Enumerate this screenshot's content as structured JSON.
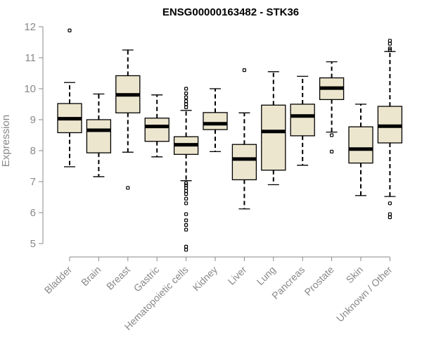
{
  "chart_data": {
    "type": "boxplot",
    "title": "ENSG00000163482 - STK36",
    "xlabel": "",
    "ylabel": "Expression",
    "ylim": [
      4.7,
      12
    ],
    "yticks": [
      5,
      6,
      7,
      8,
      9,
      10,
      11,
      12
    ],
    "grid": false,
    "box_color": "#ede6cf",
    "categories": [
      "Bladder",
      "Brain",
      "Breast",
      "Gastric",
      "Hematopoietic cells",
      "Kidney",
      "Liver",
      "Lung",
      "Pancreas",
      "Prostate",
      "Skin",
      "Unknown / Other"
    ],
    "boxes": [
      {
        "min": 7.48,
        "q1": 8.58,
        "median": 9.03,
        "q3": 9.52,
        "max": 10.2,
        "outliers": [
          11.88
        ]
      },
      {
        "min": 7.16,
        "q1": 7.93,
        "median": 8.66,
        "q3": 9.0,
        "max": 9.83,
        "outliers": []
      },
      {
        "min": 7.95,
        "q1": 9.22,
        "median": 9.8,
        "q3": 10.42,
        "max": 11.25,
        "outliers": [
          6.8
        ]
      },
      {
        "min": 7.8,
        "q1": 8.3,
        "median": 8.78,
        "q3": 9.05,
        "max": 9.8,
        "outliers": []
      },
      {
        "min": 7.03,
        "q1": 7.88,
        "median": 8.19,
        "q3": 8.45,
        "max": 9.3,
        "outliers": [
          4.8,
          4.9,
          5.45,
          5.6,
          5.75,
          5.95,
          6.3,
          6.45,
          6.6,
          6.7,
          6.8,
          6.88,
          6.95,
          9.4,
          9.5,
          9.6,
          9.72,
          9.85,
          10.0
        ]
      },
      {
        "min": 7.97,
        "q1": 8.68,
        "median": 8.87,
        "q3": 9.23,
        "max": 10.0,
        "outliers": []
      },
      {
        "min": 6.12,
        "q1": 7.06,
        "median": 7.73,
        "q3": 8.2,
        "max": 9.22,
        "outliers": [
          10.6
        ]
      },
      {
        "min": 6.9,
        "q1": 7.37,
        "median": 8.62,
        "q3": 9.47,
        "max": 10.55,
        "outliers": []
      },
      {
        "min": 7.53,
        "q1": 8.48,
        "median": 9.12,
        "q3": 9.5,
        "max": 10.4,
        "outliers": []
      },
      {
        "min": 8.6,
        "q1": 9.65,
        "median": 10.02,
        "q3": 10.35,
        "max": 10.87,
        "outliers": [
          7.97,
          8.5
        ]
      },
      {
        "min": 6.55,
        "q1": 7.6,
        "median": 8.05,
        "q3": 8.77,
        "max": 9.5,
        "outliers": []
      },
      {
        "min": 6.52,
        "q1": 8.25,
        "median": 8.79,
        "q3": 9.43,
        "max": 11.2,
        "outliers": [
          5.85,
          5.95,
          6.3,
          11.25,
          11.3,
          11.45,
          11.55
        ]
      }
    ]
  }
}
